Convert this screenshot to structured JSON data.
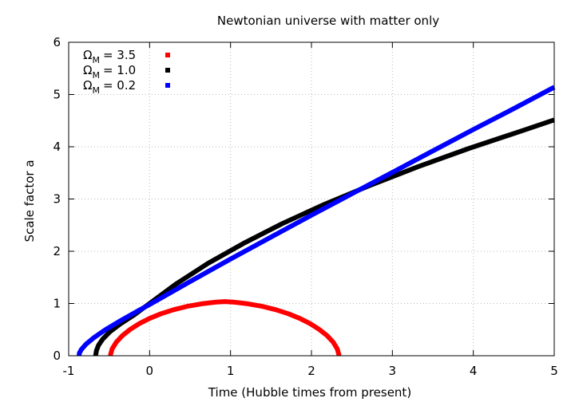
{
  "chart_data": {
    "type": "line",
    "title": "Newtonian universe with matter only",
    "xlabel": "Time (Hubble times from present)",
    "ylabel": "Scale factor a",
    "xlim": [
      -1,
      5
    ],
    "ylim": [
      0,
      6
    ],
    "xticks": [
      "-1",
      "0",
      "1",
      "2",
      "3",
      "4",
      "5"
    ],
    "yticks": [
      "0",
      "1",
      "2",
      "3",
      "4",
      "5",
      "6"
    ],
    "grid": true,
    "legend_position": "top-left",
    "series": [
      {
        "name": "Ω_M = 3.5",
        "symbol": "Ω",
        "subscript": "M",
        "value_text": "= 3.5",
        "color": "#ff0000",
        "x": [
          -0.4862,
          -0.463,
          -0.412,
          -0.337,
          -0.242,
          -0.129,
          0.0,
          0.142,
          0.296,
          0.463,
          0.641,
          0.827,
          0.928,
          1.029,
          1.215,
          1.393,
          1.56,
          1.714,
          1.856,
          1.985,
          2.098,
          2.193,
          2.268,
          2.319,
          2.342
        ],
        "y": [
          0.0,
          0.131,
          0.259,
          0.384,
          0.503,
          0.613,
          0.714,
          0.804,
          0.881,
          0.945,
          0.994,
          1.027,
          1.037,
          1.027,
          0.994,
          0.945,
          0.881,
          0.804,
          0.714,
          0.613,
          0.503,
          0.384,
          0.259,
          0.131,
          0.0
        ]
      },
      {
        "name": "Ω_M = 1.0",
        "symbol": "Ω",
        "subscript": "M",
        "value_text": "= 1.0",
        "color": "#000000",
        "x": [
          -0.667,
          -0.657,
          -0.632,
          -0.579,
          -0.49,
          -0.361,
          -0.192,
          0.0,
          0.333,
          0.722,
          1.159,
          1.64,
          2.162,
          2.722,
          3.318,
          3.948,
          4.61,
          5.0
        ],
        "y": [
          0.0,
          0.1,
          0.2,
          0.32,
          0.46,
          0.61,
          0.78,
          1.0,
          1.38,
          1.77,
          2.15,
          2.53,
          2.9,
          3.26,
          3.62,
          3.97,
          4.31,
          4.514
        ]
      },
      {
        "name": "Ω_M = 0.2",
        "symbol": "Ω",
        "subscript": "M",
        "value_text": "= 0.2",
        "color": "#0000ff",
        "x": [
          -0.872,
          -0.868,
          -0.843,
          -0.787,
          -0.685,
          -0.545,
          -0.36,
          -0.143,
          0.0,
          0.5,
          1.0,
          1.5,
          2.0,
          2.5,
          3.0,
          3.5,
          4.0,
          4.5,
          5.0
        ],
        "y": [
          0.0,
          0.05,
          0.12,
          0.22,
          0.35,
          0.5,
          0.67,
          0.86,
          0.98,
          1.42,
          1.85,
          2.27,
          2.69,
          3.1,
          3.51,
          3.92,
          4.33,
          4.73,
          5.14
        ]
      }
    ]
  }
}
